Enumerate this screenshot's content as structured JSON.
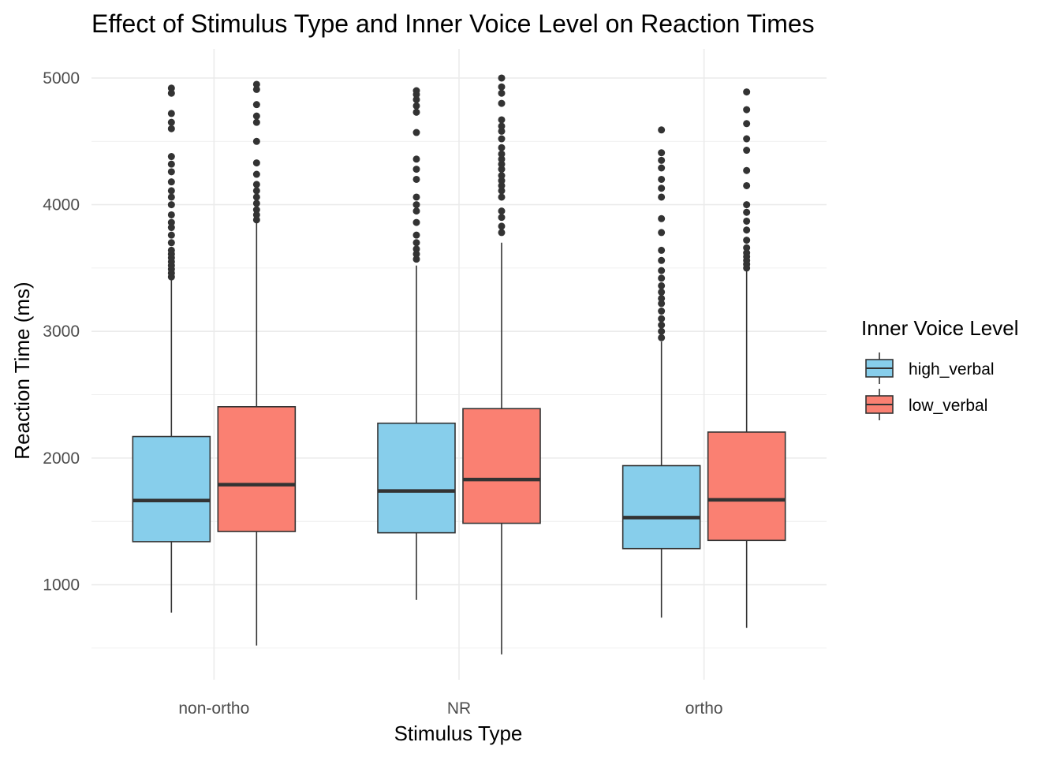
{
  "chart_data": {
    "type": "boxplot",
    "title": "Effect of Stimulus Type and Inner Voice Level on Reaction Times",
    "xlabel": "Stimulus Type",
    "ylabel": "Reaction Time (ms)",
    "categories": [
      "non-ortho",
      "NR",
      "ortho"
    ],
    "yticks": [
      1000,
      2000,
      3000,
      4000,
      5000
    ],
    "ylim": [
      250,
      5230
    ],
    "grid": true,
    "legend": {
      "title": "Inner Voice Level",
      "position": "right"
    },
    "series": [
      {
        "name": "high_verbal",
        "color": "#87CEEB",
        "boxes": [
          {
            "min": 780,
            "q1": 1340,
            "median": 1665,
            "q3": 2170,
            "max": 3410,
            "outliers": [
              3430,
              3460,
              3490,
              3520,
              3550,
              3580,
              3610,
              3640,
              3700,
              3760,
              3820,
              3860,
              3920,
              4000,
              4060,
              4110,
              4180,
              4260,
              4320,
              4380,
              4600,
              4650,
              4720,
              4880,
              4920
            ]
          },
          {
            "min": 880,
            "q1": 1410,
            "median": 1740,
            "q3": 2275,
            "max": 3520,
            "outliers": [
              3570,
              3610,
              3650,
              3700,
              3760,
              3860,
              3950,
              4000,
              4060,
              4200,
              4280,
              4360,
              4570,
              4730,
              4780,
              4830,
              4870,
              4900
            ]
          },
          {
            "min": 740,
            "q1": 1285,
            "median": 1530,
            "q3": 1940,
            "max": 2920,
            "outliers": [
              2950,
              3000,
              3050,
              3100,
              3160,
              3220,
              3260,
              3310,
              3360,
              3420,
              3480,
              3560,
              3640,
              3780,
              3890,
              4060,
              4130,
              4200,
              4290,
              4350,
              4410,
              4590
            ]
          }
        ]
      },
      {
        "name": "low_verbal",
        "color": "#FA8072",
        "boxes": [
          {
            "min": 520,
            "q1": 1420,
            "median": 1790,
            "q3": 2405,
            "max": 3860,
            "outliers": [
              3880,
              3920,
              3960,
              4010,
              4060,
              4110,
              4160,
              4240,
              4330,
              4500,
              4650,
              4700,
              4790,
              4910,
              4950
            ]
          },
          {
            "min": 450,
            "q1": 1485,
            "median": 1830,
            "q3": 2390,
            "max": 3700,
            "outliers": [
              3780,
              3830,
              3900,
              3950,
              4060,
              4110,
              4150,
              4190,
              4230,
              4280,
              4320,
              4360,
              4400,
              4450,
              4520,
              4580,
              4620,
              4670,
              4800,
              4880,
              4930,
              5000
            ]
          },
          {
            "min": 660,
            "q1": 1350,
            "median": 1670,
            "q3": 2205,
            "max": 3480,
            "outliers": [
              3500,
              3530,
              3560,
              3590,
              3620,
              3660,
              3720,
              3800,
              3870,
              3940,
              4000,
              4150,
              4270,
              4430,
              4520,
              4640,
              4750,
              4890
            ]
          }
        ]
      }
    ]
  }
}
